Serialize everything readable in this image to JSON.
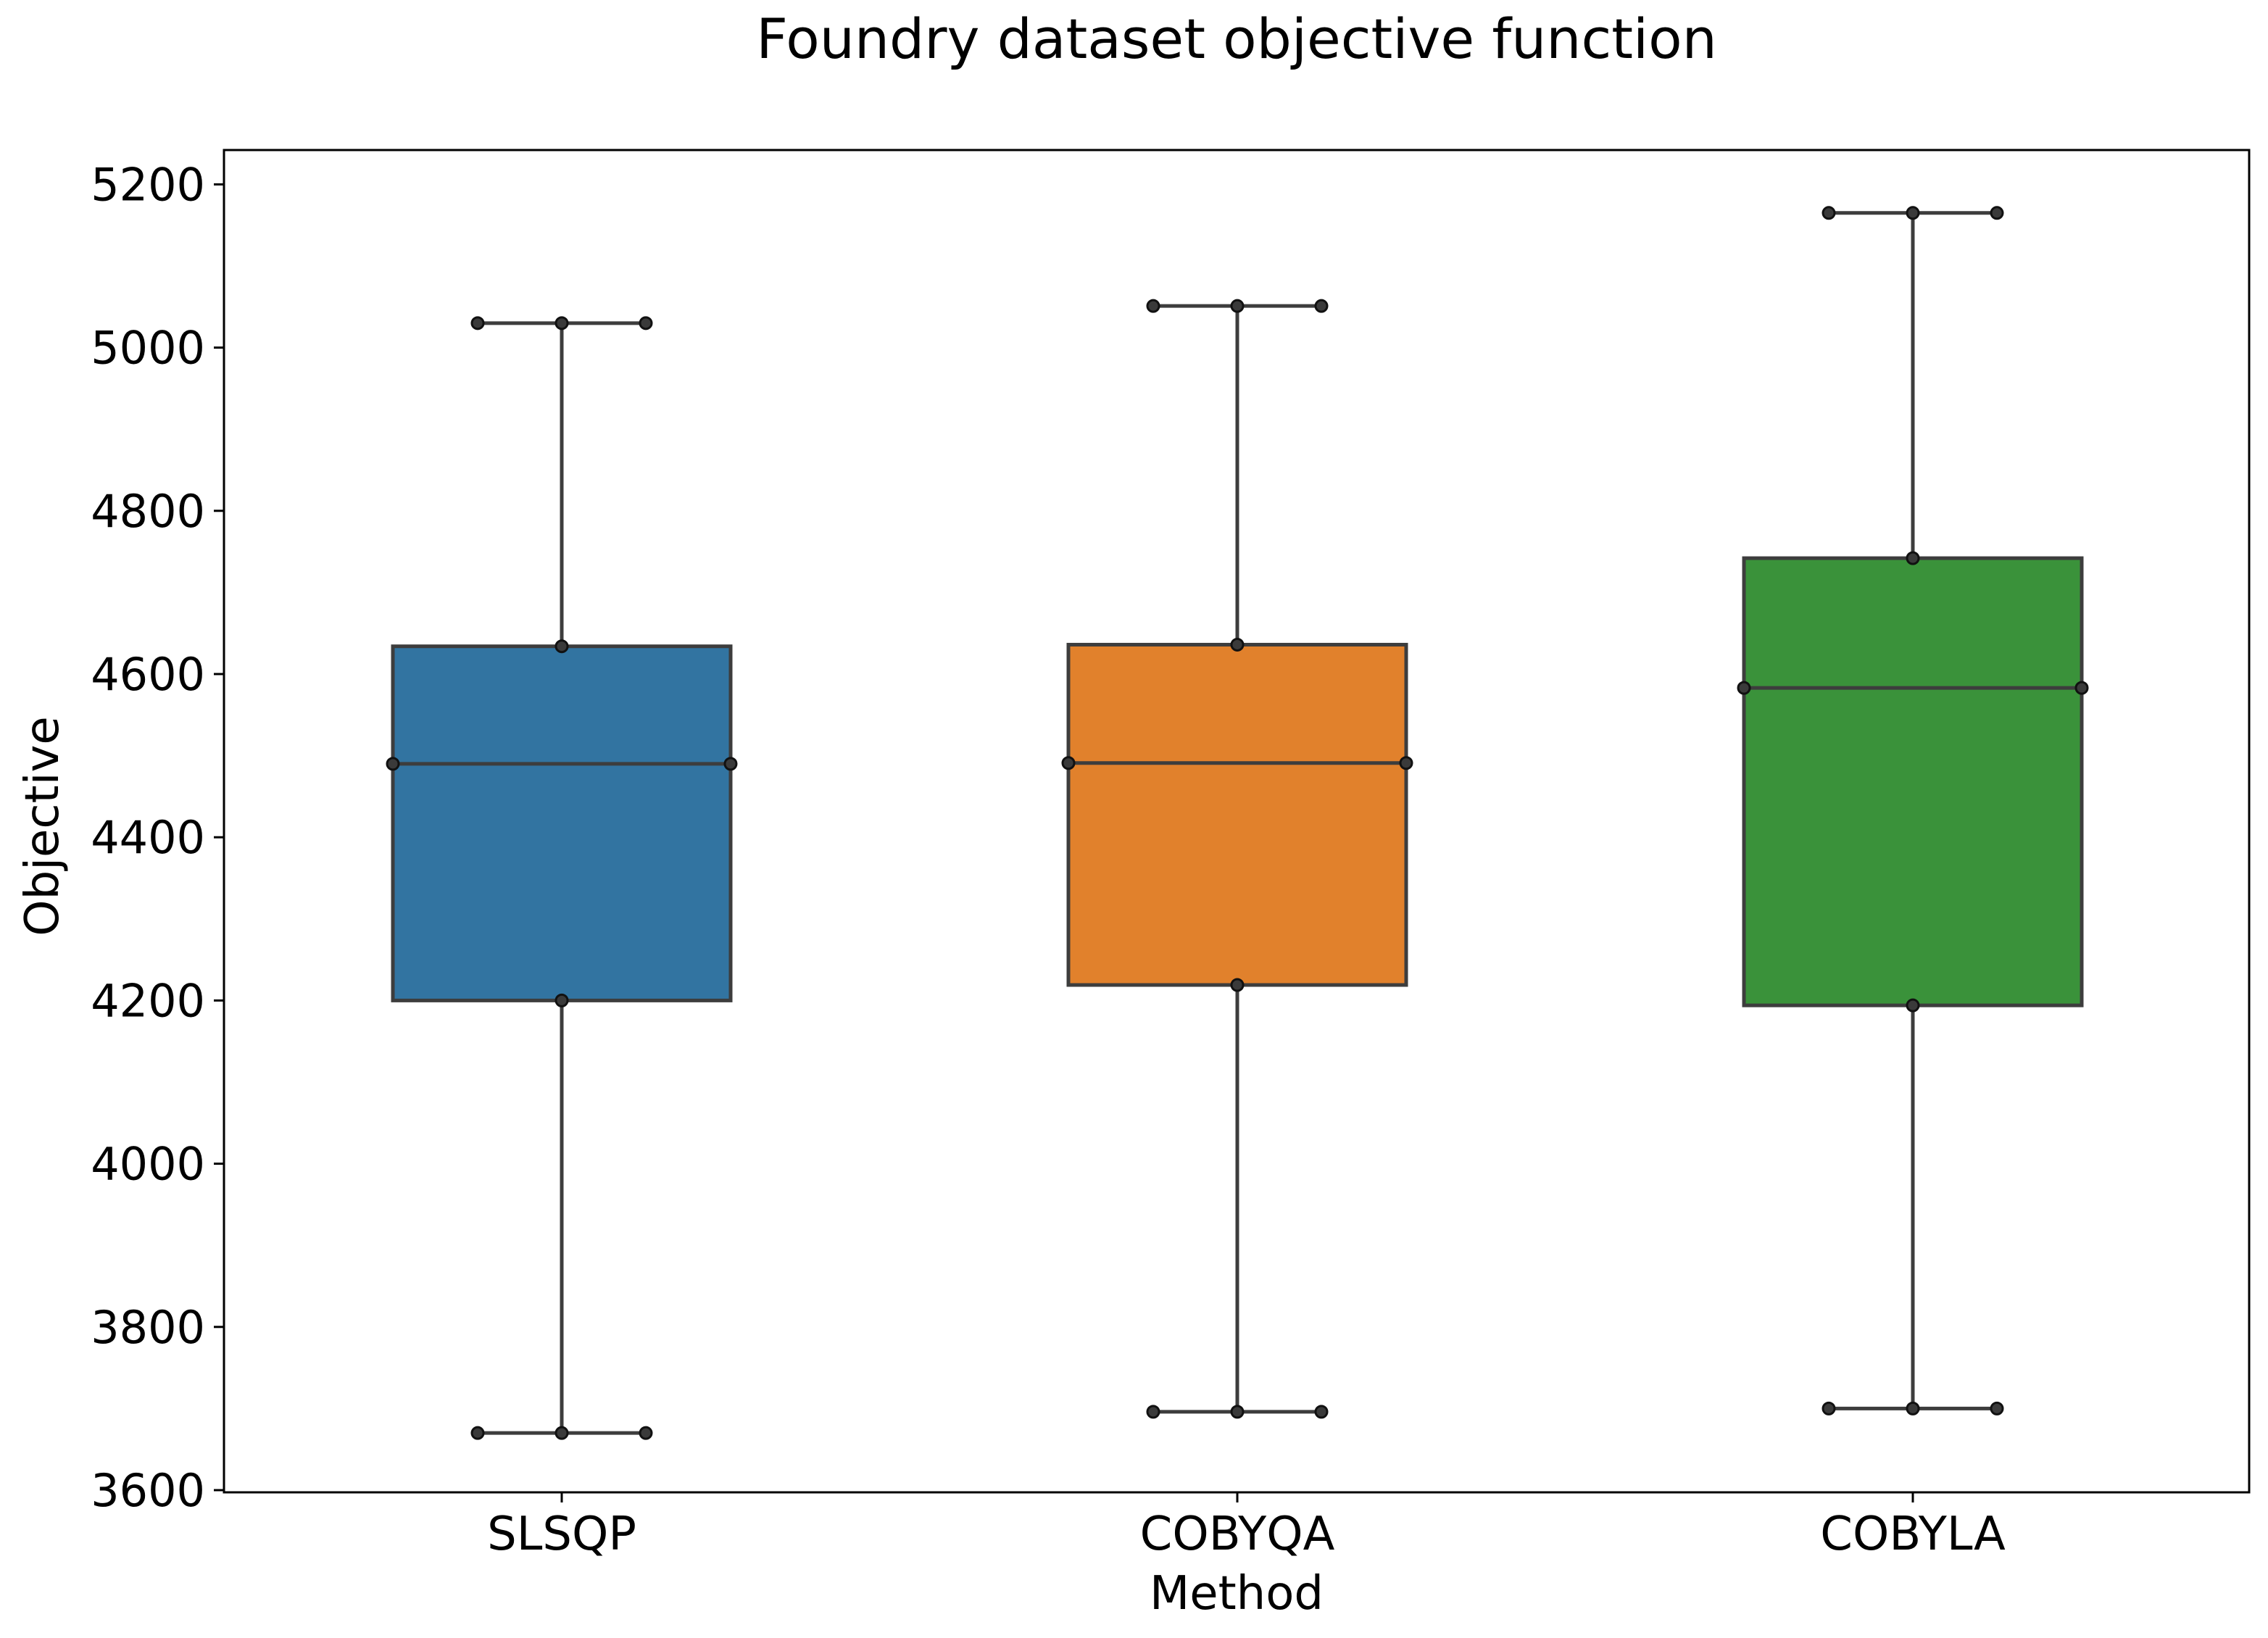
{
  "chart_data": {
    "type": "box",
    "title": "Foundry dataset objective function",
    "xlabel": "Method",
    "ylabel": "Objective",
    "ylim": [
      3600,
      5240
    ],
    "yticks": [
      3600,
      3800,
      4000,
      4200,
      4400,
      4600,
      4800,
      5000,
      5200
    ],
    "grid": false,
    "legend": "none",
    "categories": [
      "SLSQP",
      "COBYQA",
      "COBYLA"
    ],
    "colors": [
      "#3274a1",
      "#e1812c",
      "#3a923a"
    ],
    "boxes": [
      {
        "name": "SLSQP",
        "whisker_low": 3670,
        "q1": 4200,
        "median": 4490,
        "q3": 4634,
        "whisker_high": 5030
      },
      {
        "name": "COBYQA",
        "whisker_low": 3696,
        "q1": 4219,
        "median": 4491,
        "q3": 4636,
        "whisker_high": 5051
      },
      {
        "name": "COBYLA",
        "whisker_low": 3700,
        "q1": 4194,
        "median": 4583,
        "q3": 4742,
        "whisker_high": 5165
      }
    ]
  }
}
